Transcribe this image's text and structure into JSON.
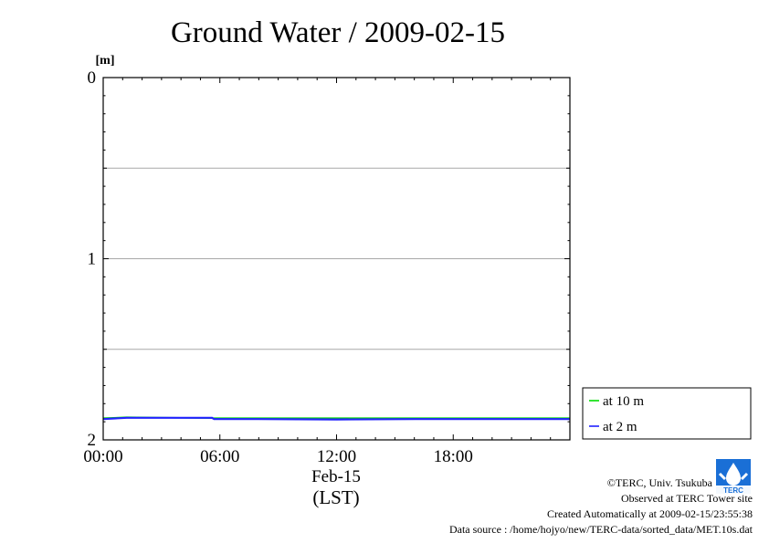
{
  "chart_data": {
    "type": "line",
    "title": "Ground Water / 2009-02-15",
    "ylabel": "[m]",
    "xlabel": "(LST)",
    "date_label": "Feb-15",
    "y_inverted": true,
    "ylim": [
      0,
      2
    ],
    "y_ticks": [
      0,
      1,
      2
    ],
    "y_tick_labels": [
      "0",
      "1",
      "2"
    ],
    "y_gridlines": [
      0.5,
      1,
      1.5
    ],
    "xlim": [
      0,
      24
    ],
    "x_ticks": [
      0,
      6,
      12,
      18
    ],
    "x_tick_labels": [
      "00:00",
      "06:00",
      "12:00",
      "18:00"
    ],
    "legend_position": "right",
    "series": [
      {
        "name": "at 10 m",
        "color": "#00dd00",
        "x": [
          0,
          1.2,
          5.6,
          8,
          12,
          16,
          20,
          24
        ],
        "values": [
          1.88,
          1.875,
          1.88,
          1.88,
          1.88,
          1.88,
          1.88,
          1.88
        ]
      },
      {
        "name": "at 2 m",
        "color": "#2222ff",
        "x": [
          0,
          1.2,
          5.6,
          5.7,
          8,
          12,
          16,
          20,
          24
        ],
        "values": [
          1.885,
          1.878,
          1.878,
          1.885,
          1.885,
          1.887,
          1.885,
          1.885,
          1.885
        ]
      }
    ]
  },
  "credits": {
    "copyright": "©TERC, Univ. Tsukuba",
    "observed": "Observed at TERC Tower site",
    "created": "Created Automatically at 2009-02-15/23:55:38",
    "source": "Data source : /home/hojyo/new/TERC-data/sorted_data/MET.10s.dat"
  },
  "logo": {
    "text": "TERC",
    "color": "#1a6fd6"
  }
}
